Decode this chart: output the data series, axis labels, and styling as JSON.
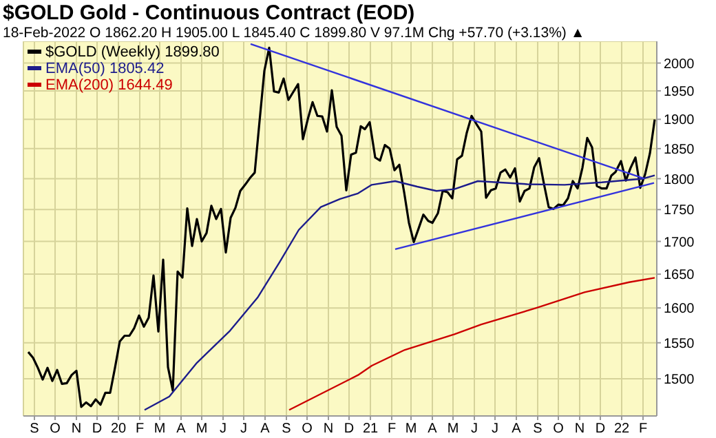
{
  "chart_data": {
    "type": "line",
    "title": "$GOLD Gold - Continuous Contract (EOD)",
    "subtitle": "18-Feb-2022   O 1862.20  H 1905.00  L 1845.40  C 1899.80  V 97.1M  Chg +57.70 (+3.13%) ▲",
    "xlim": [
      "2019-08-16",
      "2022-02-21"
    ],
    "xticks": [
      {
        "value": "2019-09",
        "label": "S"
      },
      {
        "value": "2019-10",
        "label": "O"
      },
      {
        "value": "2019-11",
        "label": "N"
      },
      {
        "value": "2019-12",
        "label": "D"
      },
      {
        "value": "2020-01",
        "label": "20"
      },
      {
        "value": "2020-02",
        "label": "F"
      },
      {
        "value": "2020-03",
        "label": "M"
      },
      {
        "value": "2020-04",
        "label": "A"
      },
      {
        "value": "2020-05",
        "label": "M"
      },
      {
        "value": "2020-06",
        "label": "J"
      },
      {
        "value": "2020-07",
        "label": "J"
      },
      {
        "value": "2020-08",
        "label": "A"
      },
      {
        "value": "2020-09",
        "label": "S"
      },
      {
        "value": "2020-10",
        "label": "O"
      },
      {
        "value": "2020-11",
        "label": "N"
      },
      {
        "value": "2020-12",
        "label": "D"
      },
      {
        "value": "2021-01",
        "label": "21"
      },
      {
        "value": "2021-02",
        "label": "F"
      },
      {
        "value": "2021-03",
        "label": "M"
      },
      {
        "value": "2021-04",
        "label": "A"
      },
      {
        "value": "2021-05",
        "label": "M"
      },
      {
        "value": "2021-06",
        "label": "J"
      },
      {
        "value": "2021-07",
        "label": "J"
      },
      {
        "value": "2021-08",
        "label": "A"
      },
      {
        "value": "2021-09",
        "label": "S"
      },
      {
        "value": "2021-10",
        "label": "O"
      },
      {
        "value": "2021-11",
        "label": "N"
      },
      {
        "value": "2021-12",
        "label": "D"
      },
      {
        "value": "2022-01",
        "label": "22"
      },
      {
        "value": "2022-02",
        "label": "F"
      }
    ],
    "ylim": [
      1450,
      2040
    ],
    "yticks": [
      1500,
      1550,
      1600,
      1650,
      1700,
      1750,
      1800,
      1850,
      1900,
      1950,
      2000
    ],
    "log": true,
    "grid": true,
    "legend": "top left",
    "series": [
      {
        "name": "$GOLD (Weekly) 1899.80",
        "color": "#000000",
        "x": [
          "2019-08-23",
          "2019-08-30",
          "2019-09-06",
          "2019-09-13",
          "2019-09-20",
          "2019-09-27",
          "2019-10-04",
          "2019-10-11",
          "2019-10-18",
          "2019-10-25",
          "2019-11-01",
          "2019-11-08",
          "2019-11-15",
          "2019-11-22",
          "2019-11-29",
          "2019-12-06",
          "2019-12-13",
          "2019-12-20",
          "2019-12-27",
          "2020-01-03",
          "2020-01-10",
          "2020-01-17",
          "2020-01-24",
          "2020-01-31",
          "2020-02-07",
          "2020-02-14",
          "2020-02-21",
          "2020-02-28",
          "2020-03-06",
          "2020-03-13",
          "2020-03-20",
          "2020-03-27",
          "2020-04-03",
          "2020-04-10",
          "2020-04-17",
          "2020-04-24",
          "2020-05-01",
          "2020-05-08",
          "2020-05-15",
          "2020-05-22",
          "2020-05-29",
          "2020-06-05",
          "2020-06-12",
          "2020-06-19",
          "2020-06-26",
          "2020-07-03",
          "2020-07-10",
          "2020-07-17",
          "2020-07-24",
          "2020-07-31",
          "2020-08-07",
          "2020-08-14",
          "2020-08-21",
          "2020-08-28",
          "2020-09-04",
          "2020-09-11",
          "2020-09-18",
          "2020-09-25",
          "2020-10-02",
          "2020-10-09",
          "2020-10-16",
          "2020-10-23",
          "2020-10-30",
          "2020-11-06",
          "2020-11-13",
          "2020-11-20",
          "2020-11-27",
          "2020-12-04",
          "2020-12-11",
          "2020-12-18",
          "2020-12-24",
          "2020-12-31",
          "2021-01-08",
          "2021-01-15",
          "2021-01-22",
          "2021-01-29",
          "2021-02-05",
          "2021-02-12",
          "2021-02-19",
          "2021-02-26",
          "2021-03-05",
          "2021-03-12",
          "2021-03-19",
          "2021-03-26",
          "2021-04-01",
          "2021-04-09",
          "2021-04-16",
          "2021-04-23",
          "2021-04-30",
          "2021-05-07",
          "2021-05-14",
          "2021-05-21",
          "2021-05-28",
          "2021-06-04",
          "2021-06-11",
          "2021-06-18",
          "2021-06-25",
          "2021-07-02",
          "2021-07-09",
          "2021-07-16",
          "2021-07-23",
          "2021-07-30",
          "2021-08-06",
          "2021-08-13",
          "2021-08-20",
          "2021-08-27",
          "2021-09-03",
          "2021-09-10",
          "2021-09-17",
          "2021-09-24",
          "2021-10-01",
          "2021-10-08",
          "2021-10-15",
          "2021-10-22",
          "2021-10-29",
          "2021-11-05",
          "2021-11-12",
          "2021-11-19",
          "2021-11-26",
          "2021-12-03",
          "2021-12-10",
          "2021-12-17",
          "2021-12-23",
          "2021-12-31",
          "2022-01-07",
          "2022-01-14",
          "2022-01-21",
          "2022-01-28",
          "2022-02-04",
          "2022-02-11",
          "2022-02-18"
        ],
        "values": [
          1537,
          1529,
          1515,
          1499,
          1515,
          1497,
          1512,
          1493,
          1494,
          1505,
          1511,
          1462,
          1468,
          1463,
          1472,
          1465,
          1481,
          1481,
          1515,
          1552,
          1560,
          1560,
          1571,
          1589,
          1573,
          1586,
          1648,
          1566,
          1672,
          1516,
          1484,
          1654,
          1645,
          1752,
          1693,
          1735,
          1700,
          1713,
          1756,
          1735,
          1751,
          1683,
          1737,
          1753,
          1780,
          1790,
          1801,
          1810,
          1897,
          1986,
          2028,
          1949,
          1947,
          1972,
          1934,
          1948,
          1962,
          1866,
          1900,
          1930,
          1906,
          1905,
          1879,
          1951,
          1887,
          1872,
          1781,
          1840,
          1843,
          1888,
          1883,
          1895,
          1835,
          1830,
          1856,
          1850,
          1814,
          1823,
          1778,
          1729,
          1699,
          1720,
          1742,
          1732,
          1729,
          1744,
          1780,
          1778,
          1768,
          1832,
          1838,
          1877,
          1906,
          1892,
          1879,
          1769,
          1781,
          1784,
          1810,
          1815,
          1802,
          1817,
          1763,
          1780,
          1784,
          1819,
          1834,
          1792,
          1754,
          1751,
          1758,
          1757,
          1768,
          1796,
          1784,
          1818,
          1868,
          1852,
          1788,
          1784,
          1784,
          1805,
          1811,
          1829,
          1797,
          1818,
          1835,
          1785,
          1807,
          1842,
          1899.8
        ]
      },
      {
        "name": "EMA(50) 1805.42",
        "color": "#1c1c8c",
        "x": [
          "2020-02-08",
          "2020-03-15",
          "2020-04-24",
          "2020-06-11",
          "2020-07-21",
          "2020-08-22",
          "2020-09-19",
          "2020-10-21",
          "2020-11-18",
          "2020-12-14",
          "2021-01-03",
          "2021-02-06",
          "2021-03-10",
          "2021-04-07",
          "2021-05-03",
          "2021-06-06",
          "2021-08-17",
          "2021-10-10",
          "2021-12-03",
          "2022-02-01",
          "2022-02-18"
        ],
        "values": [
          1458,
          1476,
          1522,
          1567,
          1615,
          1668,
          1718,
          1754,
          1767,
          1776,
          1790,
          1796,
          1787,
          1780,
          1783,
          1796,
          1791,
          1790,
          1794,
          1800,
          1805.42
        ]
      },
      {
        "name": "EMA(200) 1644.49",
        "color": "#cc0000",
        "x": [
          "2020-09-05",
          "2020-12-14",
          "2021-01-03",
          "2021-02-20",
          "2021-05-03",
          "2021-06-11",
          "2021-08-30",
          "2021-11-08",
          "2022-01-12",
          "2022-02-18"
        ],
        "values": [
          1458,
          1505,
          1518,
          1540,
          1562,
          1576,
          1600,
          1623,
          1638,
          1644.49
        ]
      },
      {
        "color": "#3333dd",
        "x": [
          "2020-07-11",
          "2022-02-03"
        ],
        "values": [
          2035,
          1800
        ]
      },
      {
        "color": "#3333dd",
        "x": [
          "2021-02-06",
          "2022-02-17"
        ],
        "values": [
          1688,
          1793
        ]
      }
    ]
  }
}
